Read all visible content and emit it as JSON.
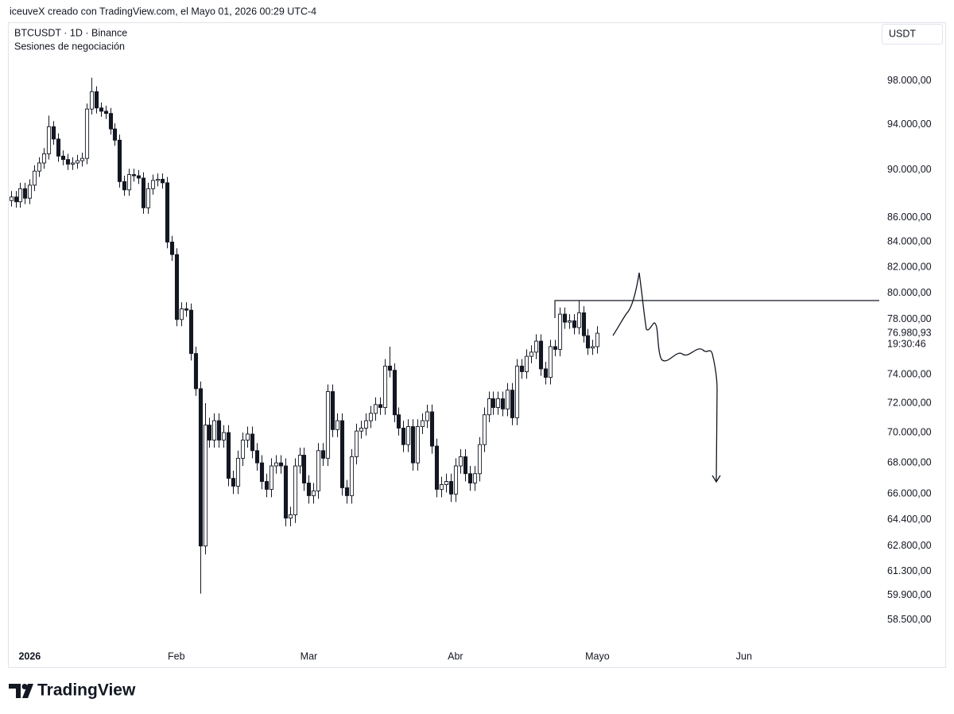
{
  "header": "iceuveX creado con TradingView.com, el Mayo 01, 2026 00:29 UTC-4",
  "chart_data": {
    "type": "candlestick",
    "title": "BTCUSDT · 1D · Binance",
    "subtitle": "Sesiones de negociación",
    "currency": "USDT",
    "log_scale": true,
    "up_color": "#ffffff",
    "down_color": "#131722",
    "outline_color": "#131722",
    "last_price_label": "76.980,93",
    "countdown": "19:30:46",
    "x": [
      -4,
      -3,
      -2,
      -1,
      0,
      1,
      2,
      3,
      4,
      5,
      6,
      7,
      8,
      9,
      10,
      11,
      12,
      13,
      14,
      15,
      16,
      17,
      18,
      19,
      20,
      21,
      22,
      23,
      24,
      25,
      26,
      27,
      28,
      29,
      30,
      31,
      32,
      33,
      34,
      35,
      36,
      37,
      38,
      39,
      40,
      41,
      42,
      43,
      44,
      45,
      46,
      47,
      48,
      49,
      50,
      51,
      52,
      53,
      54,
      55,
      56,
      57,
      58,
      59,
      60,
      61,
      62,
      63,
      64,
      65,
      66,
      67,
      68,
      69,
      70,
      71,
      72,
      73,
      74,
      75,
      76,
      77,
      78,
      79,
      80,
      81,
      82,
      83,
      84,
      85,
      86,
      87,
      88,
      89,
      90,
      91,
      92,
      93,
      94,
      95,
      96,
      97,
      98,
      99,
      100,
      101,
      102,
      103,
      104,
      105,
      106,
      107,
      108,
      109,
      110,
      111,
      112,
      113,
      114,
      115,
      116,
      117,
      118,
      119,
      120
    ],
    "open": [
      87400,
      87700,
      87300,
      88400,
      87600,
      88700,
      89900,
      90600,
      91400,
      93800,
      92700,
      91200,
      90900,
      90500,
      90600,
      90800,
      91000,
      95400,
      97000,
      95500,
      95200,
      95000,
      93600,
      92600,
      89000,
      88300,
      89600,
      89500,
      89300,
      86800,
      88400,
      89100,
      89200,
      88900,
      84000,
      83000,
      78000,
      78800,
      78700,
      75500,
      73000,
      62800,
      70500,
      69500,
      70800,
      69500,
      70000,
      67000,
      66500,
      68300,
      69500,
      69900,
      68800,
      68000,
      66800,
      66300,
      67800,
      68000,
      67800,
      64500,
      64700,
      67800,
      68500,
      66700,
      65900,
      66200,
      68800,
      68300,
      72800,
      70200,
      70800,
      66400,
      65900,
      68400,
      70100,
      70300,
      70800,
      71300,
      71900,
      71700,
      74600,
      74300,
      71200,
      70300,
      69200,
      70400,
      68000,
      70400,
      70800,
      71400,
      69100,
      66300,
      66600,
      66800,
      66000,
      67800,
      68400,
      67300,
      66700,
      67300,
      69200,
      71200,
      72300,
      71700,
      72300,
      71600,
      72900,
      71000,
      74600,
      74200,
      75300,
      75600,
      76400,
      74400,
      73800,
      76000,
      75800,
      78400,
      77800,
      77900,
      77400,
      78500,
      76800,
      75900,
      76000
    ],
    "high": [
      88200,
      88200,
      88900,
      88900,
      89200,
      90400,
      91100,
      91900,
      94800,
      94300,
      93200,
      91700,
      91400,
      91100,
      91300,
      91500,
      95900,
      98300,
      97500,
      96000,
      95700,
      95500,
      94100,
      93100,
      89500,
      90100,
      90100,
      90000,
      89800,
      88900,
      89600,
      89700,
      89700,
      89400,
      84500,
      83500,
      79300,
      79300,
      79200,
      76000,
      73500,
      72000,
      71000,
      71300,
      71300,
      70500,
      70500,
      67500,
      68800,
      70000,
      70400,
      70400,
      69300,
      68500,
      67300,
      68300,
      68500,
      68500,
      68300,
      65200,
      68300,
      69000,
      69000,
      67200,
      66700,
      69300,
      69300,
      73300,
      73300,
      71300,
      71300,
      66900,
      68900,
      70600,
      70800,
      71300,
      71800,
      72400,
      72400,
      75100,
      76000,
      74800,
      71700,
      70800,
      70900,
      70900,
      70900,
      71300,
      71900,
      71900,
      69600,
      67100,
      67300,
      67300,
      68300,
      68900,
      68900,
      67800,
      67800,
      69700,
      71700,
      72800,
      72800,
      72800,
      72800,
      73400,
      73400,
      75100,
      75100,
      75800,
      76100,
      76900,
      76900,
      74900,
      76500,
      76500,
      78900,
      78900,
      78400,
      78400,
      79400,
      79000,
      77300,
      76500,
      77500
    ],
    "low": [
      86900,
      86800,
      86800,
      87100,
      87100,
      88200,
      89400,
      90100,
      90900,
      92200,
      90700,
      90400,
      90000,
      90000,
      90100,
      90300,
      90500,
      94900,
      95000,
      94700,
      94500,
      93100,
      92100,
      88500,
      87800,
      87800,
      89000,
      88800,
      86300,
      86300,
      87900,
      88600,
      88400,
      83500,
      82500,
      77500,
      77500,
      78200,
      75000,
      72500,
      60000,
      62300,
      69000,
      69000,
      69000,
      69000,
      66500,
      66000,
      66000,
      67800,
      69000,
      68300,
      67500,
      66300,
      65800,
      65800,
      67300,
      67300,
      64000,
      64000,
      64200,
      67300,
      66200,
      65400,
      65400,
      65700,
      67800,
      67800,
      69700,
      69700,
      65900,
      65400,
      65400,
      67900,
      69600,
      69800,
      70300,
      70800,
      71200,
      71200,
      73800,
      70700,
      69800,
      68700,
      68700,
      67500,
      67500,
      69900,
      70300,
      68600,
      65800,
      65800,
      66100,
      65500,
      65500,
      67300,
      66800,
      66200,
      66200,
      66800,
      68700,
      70700,
      71200,
      71200,
      71100,
      71100,
      70500,
      70500,
      73700,
      73700,
      74800,
      75100,
      73900,
      73300,
      73300,
      75300,
      75300,
      77300,
      77300,
      76900,
      76900,
      76300,
      75400,
      75400,
      75500
    ],
    "close": [
      87700,
      87300,
      88400,
      87600,
      88700,
      89900,
      90600,
      91400,
      93800,
      92700,
      91200,
      90900,
      90500,
      90600,
      90800,
      91000,
      95400,
      97000,
      95500,
      95200,
      95000,
      93600,
      92600,
      89000,
      88300,
      89600,
      89500,
      89300,
      86800,
      88400,
      89100,
      89200,
      88900,
      84000,
      83000,
      78000,
      78800,
      78700,
      75500,
      73000,
      62800,
      70500,
      69500,
      70800,
      69500,
      70000,
      67000,
      66500,
      68300,
      69500,
      69900,
      68800,
      68000,
      66800,
      66300,
      67800,
      68000,
      67800,
      64500,
      64700,
      67800,
      68500,
      66700,
      65900,
      66200,
      68800,
      68300,
      72800,
      70200,
      70800,
      66400,
      65900,
      68400,
      70100,
      70300,
      70800,
      71300,
      71900,
      71700,
      74600,
      74300,
      71200,
      70300,
      69200,
      70400,
      68000,
      70400,
      70800,
      71400,
      69100,
      66300,
      66600,
      66800,
      66000,
      67800,
      68400,
      67300,
      66700,
      67300,
      69200,
      71200,
      72300,
      71700,
      72300,
      71600,
      72900,
      71000,
      74600,
      74200,
      75300,
      75600,
      76400,
      74400,
      73800,
      76000,
      75800,
      78400,
      77800,
      77900,
      77400,
      78500,
      76800,
      75900,
      76000,
      76980.93
    ],
    "xlim": [
      -4.6,
      179.6
    ],
    "xticks": [
      {
        "value": 0,
        "label": "2026"
      },
      {
        "value": 31,
        "label": "Feb"
      },
      {
        "value": 59,
        "label": "Mar"
      },
      {
        "value": 90,
        "label": "Abr"
      },
      {
        "value": 120,
        "label": "Mayo"
      },
      {
        "value": 151,
        "label": "Jun"
      }
    ],
    "ylim": [
      57090,
      103660
    ],
    "yticks": [
      {
        "value": 98000,
        "label": "98.000,00"
      },
      {
        "value": 94000,
        "label": "94.000,00"
      },
      {
        "value": 90000,
        "label": "90.000,00"
      },
      {
        "value": 86000,
        "label": "86.000,00"
      },
      {
        "value": 84000,
        "label": "84.000,00"
      },
      {
        "value": 82000,
        "label": "82.000,00"
      },
      {
        "value": 80000,
        "label": "80.000,00"
      },
      {
        "value": 78000,
        "label": "78.000,00"
      },
      {
        "value": 74000,
        "label": "74.000,00"
      },
      {
        "value": 72000,
        "label": "72.000,00"
      },
      {
        "value": 70000,
        "label": "70.000,00"
      },
      {
        "value": 68000,
        "label": "68.000,00"
      },
      {
        "value": 66000,
        "label": "66.000,00"
      },
      {
        "value": 64400,
        "label": "64.400,00"
      },
      {
        "value": 62800,
        "label": "62.800,00"
      },
      {
        "value": 61300,
        "label": "61.300,00"
      },
      {
        "value": 59900,
        "label": "59.900,00"
      },
      {
        "value": 58500,
        "label": "58.500,00"
      }
    ]
  },
  "footer": {
    "logo": "TradingView"
  }
}
